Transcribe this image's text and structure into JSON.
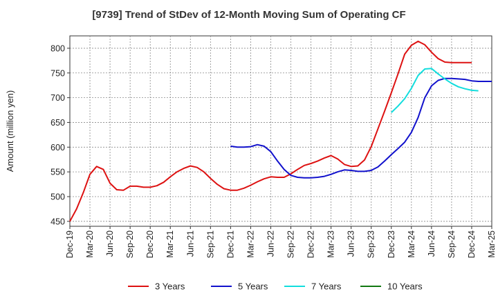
{
  "title": "[9739]  Trend of StDev of 12-Month Moving Sum of Operating CF",
  "chart_data": {
    "type": "line",
    "title": "[9739]  Trend of StDev of 12-Month Moving Sum of Operating CF",
    "ylabel": "Amount (million yen)",
    "xlabel": "",
    "ylim": [
      440,
      825
    ],
    "yticks": [
      450,
      500,
      550,
      600,
      650,
      700,
      750,
      800
    ],
    "grid": true,
    "legend_position": "bottom",
    "x_tick_labels": [
      "Dec-19",
      "Mar-20",
      "Jun-20",
      "Sep-20",
      "Dec-20",
      "Mar-21",
      "Jun-21",
      "Sep-21",
      "Dec-21",
      "Mar-22",
      "Jun-22",
      "Sep-22",
      "Dec-22",
      "Mar-23",
      "Jun-23",
      "Sep-23",
      "Dec-23",
      "Mar-24",
      "Jun-24",
      "Sep-24",
      "Dec-24",
      "Mar-25"
    ],
    "series": [
      {
        "name": "3 Years",
        "color": "#dd1111",
        "start_index": 0,
        "values": [
          450,
          475,
          508,
          545,
          561,
          555,
          527,
          514,
          513,
          521,
          521,
          519,
          519,
          522,
          529,
          540,
          550,
          557,
          562,
          559,
          550,
          537,
          525,
          516,
          513,
          513,
          517,
          523,
          530,
          536,
          540,
          539,
          539,
          546,
          555,
          563,
          567,
          572,
          578,
          583,
          576,
          565,
          561,
          562,
          574,
          601,
          637,
          673,
          710,
          748,
          788,
          806,
          814,
          807,
          792,
          779,
          772,
          771,
          771,
          771,
          771
        ]
      },
      {
        "name": "5 Years",
        "color": "#1111cc",
        "start_index": 24,
        "values": [
          602,
          600,
          600,
          601,
          605,
          602,
          591,
          572,
          555,
          543,
          539,
          538,
          538,
          539,
          541,
          545,
          550,
          554,
          553,
          551,
          551,
          553,
          560,
          572,
          585,
          597,
          610,
          630,
          660,
          700,
          724,
          735,
          739,
          739,
          738,
          737,
          734,
          733,
          733,
          733
        ]
      },
      {
        "name": "7 Years",
        "color": "#11dddd",
        "start_index": 48,
        "values": [
          670,
          683,
          698,
          719,
          745,
          758,
          759,
          748,
          738,
          729,
          722,
          718,
          715,
          714
        ]
      },
      {
        "name": "10 Years",
        "color": "#117711",
        "start_index": 0,
        "values": []
      }
    ]
  }
}
